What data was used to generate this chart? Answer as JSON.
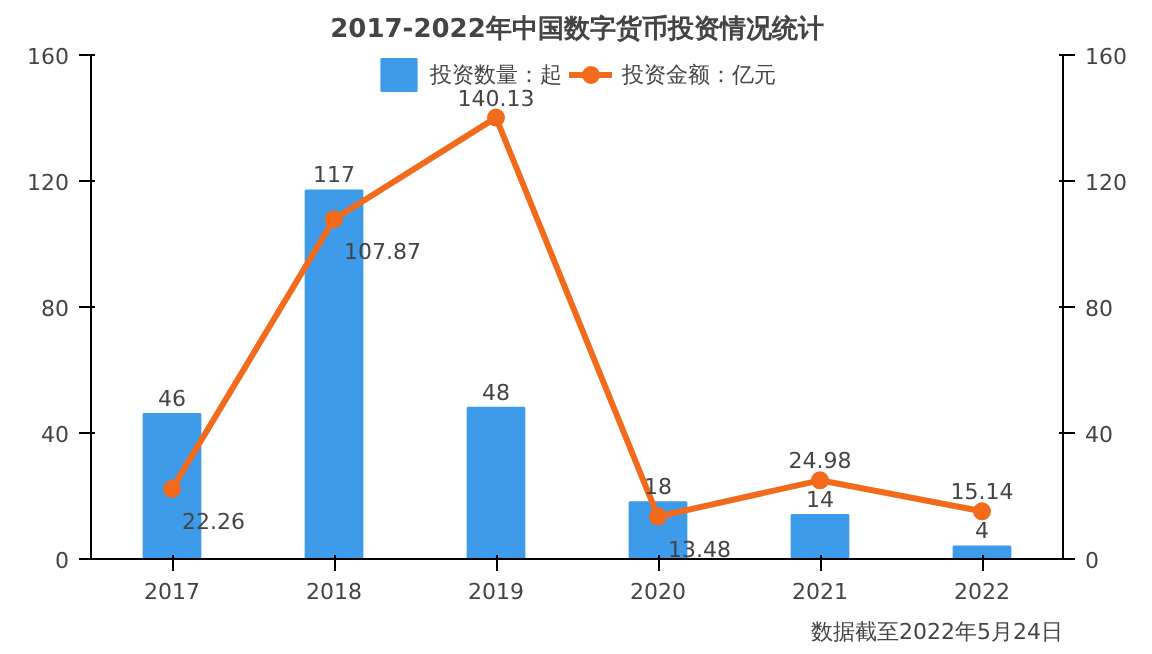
{
  "chart_data": {
    "type": "bar",
    "title": "2017-2022年中国数字货币投资情况统计",
    "categories": [
      "2017",
      "2018",
      "2019",
      "2020",
      "2021",
      "2022"
    ],
    "series": [
      {
        "name": "投资数量：起",
        "color": "#3d9be9",
        "values": [
          46,
          117,
          48,
          18,
          14,
          4
        ]
      },
      {
        "name": "投资金额：亿元",
        "type": "line",
        "axis": "y2",
        "color": "#f26a1b",
        "marker": "circle",
        "values": [
          22.26,
          107.87,
          140.13,
          13.48,
          24.98,
          15.14
        ]
      }
    ],
    "ylim": [
      0,
      160
    ],
    "yticks": [
      0,
      40,
      80,
      120,
      160
    ],
    "y2lim": [
      0,
      160
    ],
    "y2ticks": [
      0,
      40,
      80,
      120,
      160
    ],
    "data_labels": true,
    "legend": "top",
    "grid": false,
    "annotations": [
      "数据截至2022年5月24日"
    ]
  }
}
